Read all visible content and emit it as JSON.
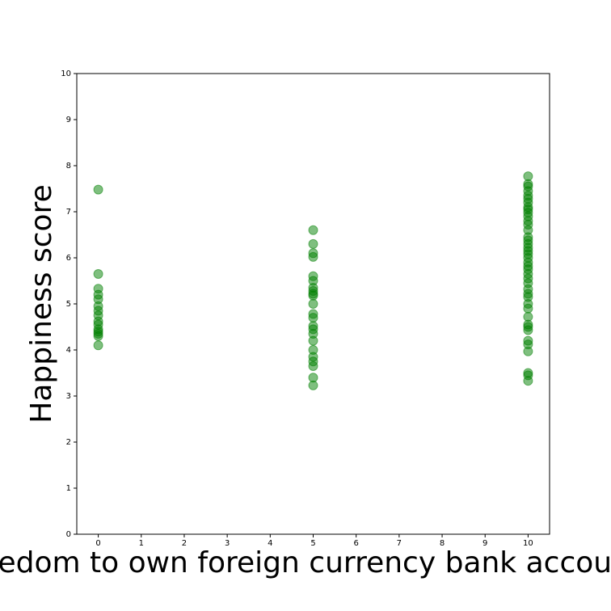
{
  "chart_data": {
    "type": "scatter",
    "x_label": "Freedom to own foreign currency bank accounts",
    "y_label": "Happiness score",
    "x": [
      0,
      0,
      0,
      0,
      0,
      0,
      0,
      0,
      0,
      0,
      0,
      0,
      0,
      0,
      0,
      5,
      5,
      5,
      5,
      5,
      5,
      5,
      5,
      5,
      5,
      5,
      5,
      5,
      5,
      5,
      5,
      5,
      5,
      5,
      5,
      5,
      5,
      5,
      10,
      10,
      10,
      10,
      10,
      10,
      10,
      10,
      10,
      10,
      10,
      10,
      10,
      10,
      10,
      10,
      10,
      10,
      10,
      10,
      10,
      10,
      10,
      10,
      10,
      10,
      10,
      10,
      10,
      10,
      10,
      10,
      10,
      10,
      10,
      10,
      10,
      10,
      10,
      10,
      10,
      10
    ],
    "values": [
      7.48,
      5.65,
      5.33,
      5.2,
      5.1,
      4.95,
      4.85,
      4.75,
      4.62,
      4.55,
      4.45,
      4.4,
      4.35,
      4.3,
      4.1,
      6.6,
      6.3,
      6.1,
      6.02,
      5.6,
      5.5,
      5.35,
      5.28,
      5.22,
      5.18,
      5.0,
      4.78,
      4.7,
      4.52,
      4.45,
      4.35,
      4.2,
      4.0,
      3.85,
      3.75,
      3.65,
      3.4,
      3.23,
      7.77,
      7.6,
      7.55,
      7.45,
      7.35,
      7.28,
      7.2,
      7.1,
      7.05,
      6.98,
      6.9,
      6.8,
      6.72,
      6.6,
      6.45,
      6.38,
      6.3,
      6.22,
      6.15,
      6.08,
      6.0,
      5.9,
      5.82,
      5.75,
      5.65,
      5.55,
      5.45,
      5.32,
      5.22,
      5.15,
      5.0,
      4.9,
      4.72,
      4.55,
      4.5,
      4.43,
      4.2,
      4.12,
      3.97,
      3.5,
      3.45,
      3.33
    ],
    "color": "green",
    "opacity": 0.5,
    "xlim": [
      -0.5,
      10.5
    ],
    "ylim": [
      0,
      10
    ],
    "xticks": [
      0,
      1,
      2,
      3,
      4,
      5,
      6,
      7,
      8,
      9,
      10
    ],
    "yticks": [
      0,
      1,
      2,
      3,
      4,
      5,
      6,
      7,
      8,
      9,
      10
    ]
  }
}
